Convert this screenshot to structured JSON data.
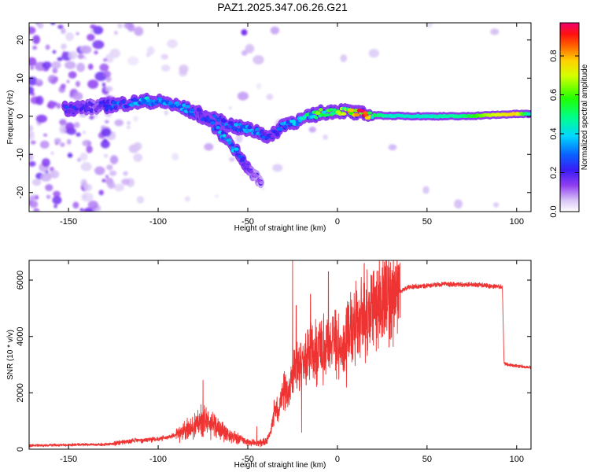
{
  "figure_title": "PAZ1.2025.347.06.26.G21",
  "colors": {
    "snr_line": "#ee3333",
    "axes": "#000000",
    "background": "#ffffff"
  },
  "chart_data": [
    {
      "type": "heatmap",
      "title": "PAZ1.2025.347.06.26.G21",
      "xlabel": "Height of straight line (km)",
      "ylabel": "Frequency (Hz)",
      "xlim": [
        -172,
        108
      ],
      "ylim": [
        -25,
        24.5
      ],
      "xticks": [
        -150,
        -100,
        -50,
        0,
        50,
        100
      ],
      "yticks": [
        -20,
        -10,
        0,
        10,
        20
      ],
      "colormap": "rainbow (purple-blue-cyan-green-yellow-orange-red-magenta)",
      "colorbar": {
        "label": "Normalized spectral amplitude",
        "range": [
          0.0,
          0.97
        ],
        "ticks": [
          0.0,
          0.2,
          0.4,
          0.6,
          0.8
        ]
      },
      "ridges": [
        {
          "name": "main ridge",
          "points": [
            [
              -152,
              2,
              0.25
            ],
            [
              -135,
              2.5,
              0.15
            ],
            [
              -125,
              3,
              0.25
            ],
            [
              -115,
              3.5,
              0.3
            ],
            [
              -105,
              4,
              0.35
            ],
            [
              -95,
              3.5,
              0.3
            ],
            [
              -85,
              2,
              0.3
            ],
            [
              -75,
              0,
              0.25
            ],
            [
              -65,
              -1.5,
              0.25
            ],
            [
              -55,
              -3,
              0.3
            ],
            [
              -45,
              -4,
              0.3
            ],
            [
              -37,
              -5.5,
              0.2
            ],
            [
              -30,
              -2,
              0.3
            ],
            [
              -20,
              -1,
              0.4
            ],
            [
              -15,
              0,
              0.45
            ],
            [
              -10,
              0.8,
              0.55
            ],
            [
              -5,
              1.2,
              0.6
            ],
            [
              0,
              1.5,
              0.6
            ],
            [
              5,
              1.3,
              0.65
            ],
            [
              10,
              0.8,
              0.75
            ],
            [
              15,
              0.5,
              0.8
            ],
            [
              20,
              0.3,
              0.55
            ],
            [
              30,
              0.1,
              0.45
            ],
            [
              50,
              0,
              0.45
            ],
            [
              70,
              0,
              0.5
            ],
            [
              85,
              0.3,
              0.7
            ],
            [
              100,
              0.6,
              0.8
            ],
            [
              108,
              0.6,
              0.4
            ]
          ]
        },
        {
          "name": "descending branch",
          "points": [
            [
              -78,
              1,
              0.2
            ],
            [
              -70,
              -2,
              0.25
            ],
            [
              -62,
              -6,
              0.35
            ],
            [
              -56,
              -9,
              0.3
            ],
            [
              -52,
              -12,
              0.25
            ],
            [
              -48,
              -15,
              0.15
            ],
            [
              -42,
              -18,
              0.1
            ]
          ]
        }
      ]
    },
    {
      "type": "line",
      "xlabel": "Height of straight line (km)",
      "ylabel": "SNR (10 * v/v)",
      "xlim": [
        -172,
        108
      ],
      "ylim": [
        0,
        6700
      ],
      "xticks": [
        -150,
        -100,
        -50,
        0,
        50,
        100
      ],
      "yticks": [
        0,
        2000,
        4000,
        6000
      ],
      "series": [
        {
          "name": "SNR",
          "x": [
            -172,
            -160,
            -150,
            -140,
            -130,
            -125,
            -120,
            -110,
            -100,
            -95,
            -90,
            -85,
            -80,
            -75,
            -70,
            -65,
            -60,
            -55,
            -50,
            -45,
            -40,
            -37,
            -35,
            -33,
            -30,
            -27,
            -25,
            -23,
            -20,
            -17,
            -15,
            -12,
            -10,
            -7,
            -5,
            -2,
            0,
            3,
            5,
            8,
            10,
            13,
            15,
            18,
            20,
            25,
            30,
            35,
            40,
            50,
            60,
            70,
            80,
            85,
            92,
            93,
            95,
            100,
            108
          ],
          "y": [
            130,
            140,
            150,
            160,
            170,
            190,
            260,
            320,
            360,
            420,
            500,
            650,
            800,
            1050,
            900,
            700,
            500,
            380,
            250,
            200,
            260,
            600,
            1500,
            1300,
            2200,
            1900,
            2800,
            3000,
            3300,
            3100,
            3500,
            3400,
            3700,
            3600,
            3900,
            3700,
            4000,
            3200,
            4300,
            4100,
            4500,
            4400,
            4800,
            4700,
            5000,
            5200,
            5400,
            5600,
            5750,
            5800,
            5850,
            5850,
            5820,
            5800,
            5750,
            3050,
            3000,
            2950,
            2900
          ]
        }
      ],
      "spikes": [
        [
          -75,
          2450
        ],
        [
          -45,
          800
        ],
        [
          -25,
          6700
        ],
        [
          -23,
          5100
        ],
        [
          -15,
          5500
        ],
        [
          -5,
          6300
        ],
        [
          5,
          6100
        ],
        [
          15,
          6600
        ],
        [
          20,
          6300
        ]
      ],
      "dips": [
        [
          -20,
          600
        ],
        [
          5,
          2200
        ]
      ]
    }
  ]
}
